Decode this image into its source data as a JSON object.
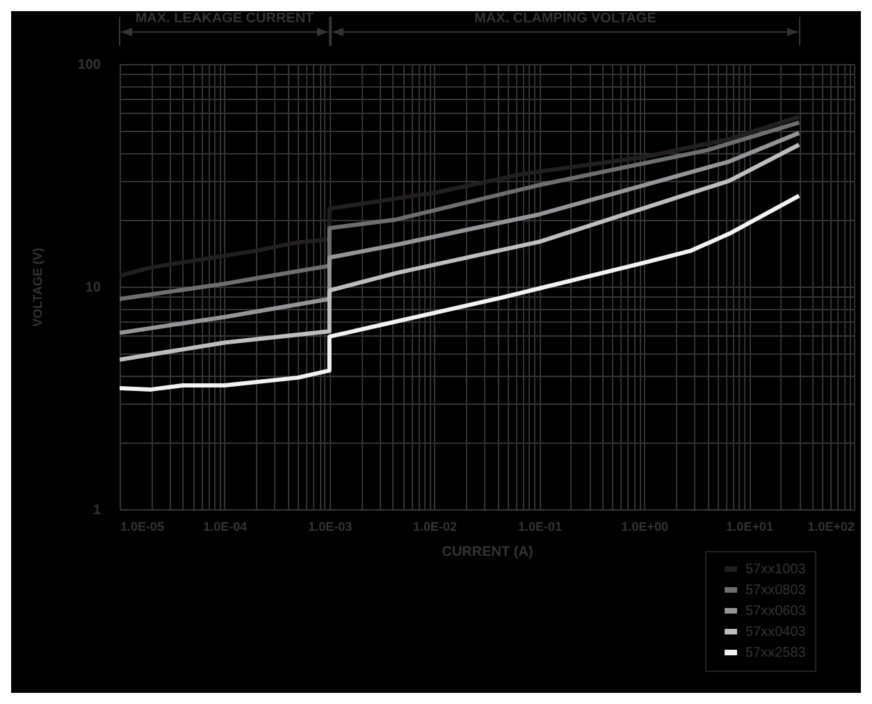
{
  "chart_data": {
    "type": "line",
    "xlabel": "CURRENT (A)",
    "ylabel": "VOLTAGE (V)",
    "log": "xy",
    "grid": true,
    "legend": "bottom right",
    "line_style": "solid",
    "marker": "none",
    "annotations": [
      "MAX. LEAKAGE CURRENT",
      "MAX. CLAMPING VOLTAGE"
    ],
    "xlim": [
      1e-05,
      100
    ],
    "ylim": [
      1,
      100
    ],
    "xticks": [
      {
        "value": 1e-05,
        "label": "1.0E-05"
      },
      {
        "value": 2e-05,
        "label": null
      },
      {
        "value": 3e-05,
        "label": null
      },
      {
        "value": 4e-05,
        "label": null
      },
      {
        "value": 5e-05,
        "label": null
      },
      {
        "value": 6e-05,
        "label": null
      },
      {
        "value": 7e-05,
        "label": null
      },
      {
        "value": 8e-05,
        "label": null
      },
      {
        "value": 9e-05,
        "label": null
      },
      {
        "value": 0.0001,
        "label": "1.0E-04"
      },
      {
        "value": 0.0002,
        "label": null
      },
      {
        "value": 0.0003,
        "label": null
      },
      {
        "value": 0.0004,
        "label": null
      },
      {
        "value": 0.0005,
        "label": null
      },
      {
        "value": 0.0006,
        "label": null
      },
      {
        "value": 0.0007,
        "label": null
      },
      {
        "value": 0.0008,
        "label": null
      },
      {
        "value": 0.0009,
        "label": null
      },
      {
        "value": 0.001,
        "label": "1.0E-03"
      },
      {
        "value": 0.002,
        "label": null
      },
      {
        "value": 0.003,
        "label": null
      },
      {
        "value": 0.004,
        "label": null
      },
      {
        "value": 0.005,
        "label": null
      },
      {
        "value": 0.006,
        "label": null
      },
      {
        "value": 0.007,
        "label": null
      },
      {
        "value": 0.008,
        "label": null
      },
      {
        "value": 0.009,
        "label": null
      },
      {
        "value": 0.01,
        "label": "1.0E-02"
      },
      {
        "value": 0.02,
        "label": null
      },
      {
        "value": 0.03,
        "label": null
      },
      {
        "value": 0.04,
        "label": null
      },
      {
        "value": 0.05,
        "label": null
      },
      {
        "value": 0.06,
        "label": null
      },
      {
        "value": 0.07,
        "label": null
      },
      {
        "value": 0.08,
        "label": null
      },
      {
        "value": 0.09,
        "label": null
      },
      {
        "value": 0.1,
        "label": "1.0E-01"
      },
      {
        "value": 0.2,
        "label": null
      },
      {
        "value": 0.3,
        "label": null
      },
      {
        "value": 0.4,
        "label": null
      },
      {
        "value": 0.5,
        "label": null
      },
      {
        "value": 0.6,
        "label": null
      },
      {
        "value": 0.7,
        "label": null
      },
      {
        "value": 0.8,
        "label": null
      },
      {
        "value": 0.9,
        "label": null
      },
      {
        "value": 1,
        "label": "1.0E+00"
      },
      {
        "value": 2,
        "label": null
      },
      {
        "value": 3,
        "label": null
      },
      {
        "value": 4,
        "label": null
      },
      {
        "value": 5,
        "label": null
      },
      {
        "value": 6,
        "label": null
      },
      {
        "value": 7,
        "label": null
      },
      {
        "value": 8,
        "label": null
      },
      {
        "value": 9,
        "label": null
      },
      {
        "value": 10,
        "label": "1.0E+01"
      },
      {
        "value": 20,
        "label": null
      },
      {
        "value": 30,
        "label": null
      },
      {
        "value": 40,
        "label": null
      },
      {
        "value": 50,
        "label": null
      },
      {
        "value": 60,
        "label": null
      },
      {
        "value": 70,
        "label": null
      },
      {
        "value": 80,
        "label": null
      },
      {
        "value": 90,
        "label": null
      },
      {
        "value": 100,
        "label": "1.0E+02"
      }
    ],
    "yticks": [
      1,
      {
        "value": 2,
        "label": null
      },
      {
        "value": 3,
        "label": null
      },
      {
        "value": 4,
        "label": null
      },
      {
        "value": 5,
        "label": null
      },
      {
        "value": 6,
        "label": null
      },
      {
        "value": 7,
        "label": null
      },
      {
        "value": 8,
        "label": null
      },
      {
        "value": 9,
        "label": null
      },
      10,
      {
        "value": 20,
        "label": null
      },
      {
        "value": 30,
        "label": null
      },
      {
        "value": 40,
        "label": null
      },
      {
        "value": 50,
        "label": null
      },
      {
        "value": 60,
        "label": null
      },
      {
        "value": 70,
        "label": null
      },
      {
        "value": 80,
        "label": null
      },
      {
        "value": 90,
        "label": null
      },
      100
    ],
    "series": [
      {
        "name": "57xx1003",
        "color": "#231f20",
        "x": [
          1e-05,
          2e-05,
          0.0002,
          0.0005,
          0.001,
          0.001,
          0.011,
          0.07,
          1,
          6.5,
          30
        ],
        "values": [
          11.2,
          12.2,
          14.5,
          15.8,
          16.3,
          22.4,
          26.6,
          32.1,
          38.2,
          46,
          57.9
        ]
      },
      {
        "name": "57xx0803",
        "color": "#6d6e70",
        "x": [
          1e-05,
          0.0001,
          0.0002,
          0.001,
          0.001,
          0.0043,
          0.1,
          4,
          30
        ],
        "values": [
          8.8,
          10.3,
          10.9,
          12.4,
          18.3,
          20,
          28.6,
          41,
          54.6
        ]
      },
      {
        "name": "57xx0603",
        "color": "#939598",
        "x": [
          1e-05,
          0.0001,
          0.001,
          0.001,
          0.0043,
          0.1,
          6.5,
          30
        ],
        "values": [
          6.2,
          7.3,
          8.8,
          13.5,
          15.4,
          21.1,
          36.5,
          49
        ]
      },
      {
        "name": "57xx0403",
        "color": "#bcbec0",
        "x": [
          1e-05,
          0.0001,
          0.001,
          0.001,
          0.0043,
          0.1,
          6.5,
          30
        ],
        "values": [
          4.7,
          5.6,
          6.3,
          9.6,
          11.5,
          15.9,
          29.9,
          43.4
        ]
      },
      {
        "name": "57xx2583",
        "color": "#f1f2f2",
        "x": [
          1e-05,
          2e-05,
          4e-05,
          0.0001,
          0.0005,
          0.001,
          0.001,
          0.043,
          1,
          2.8,
          6.5,
          30
        ],
        "values": [
          3.5,
          3.45,
          3.6,
          3.6,
          3.9,
          4.2,
          5.96,
          8.9,
          12.8,
          14.5,
          17.3,
          25.6
        ]
      }
    ]
  }
}
